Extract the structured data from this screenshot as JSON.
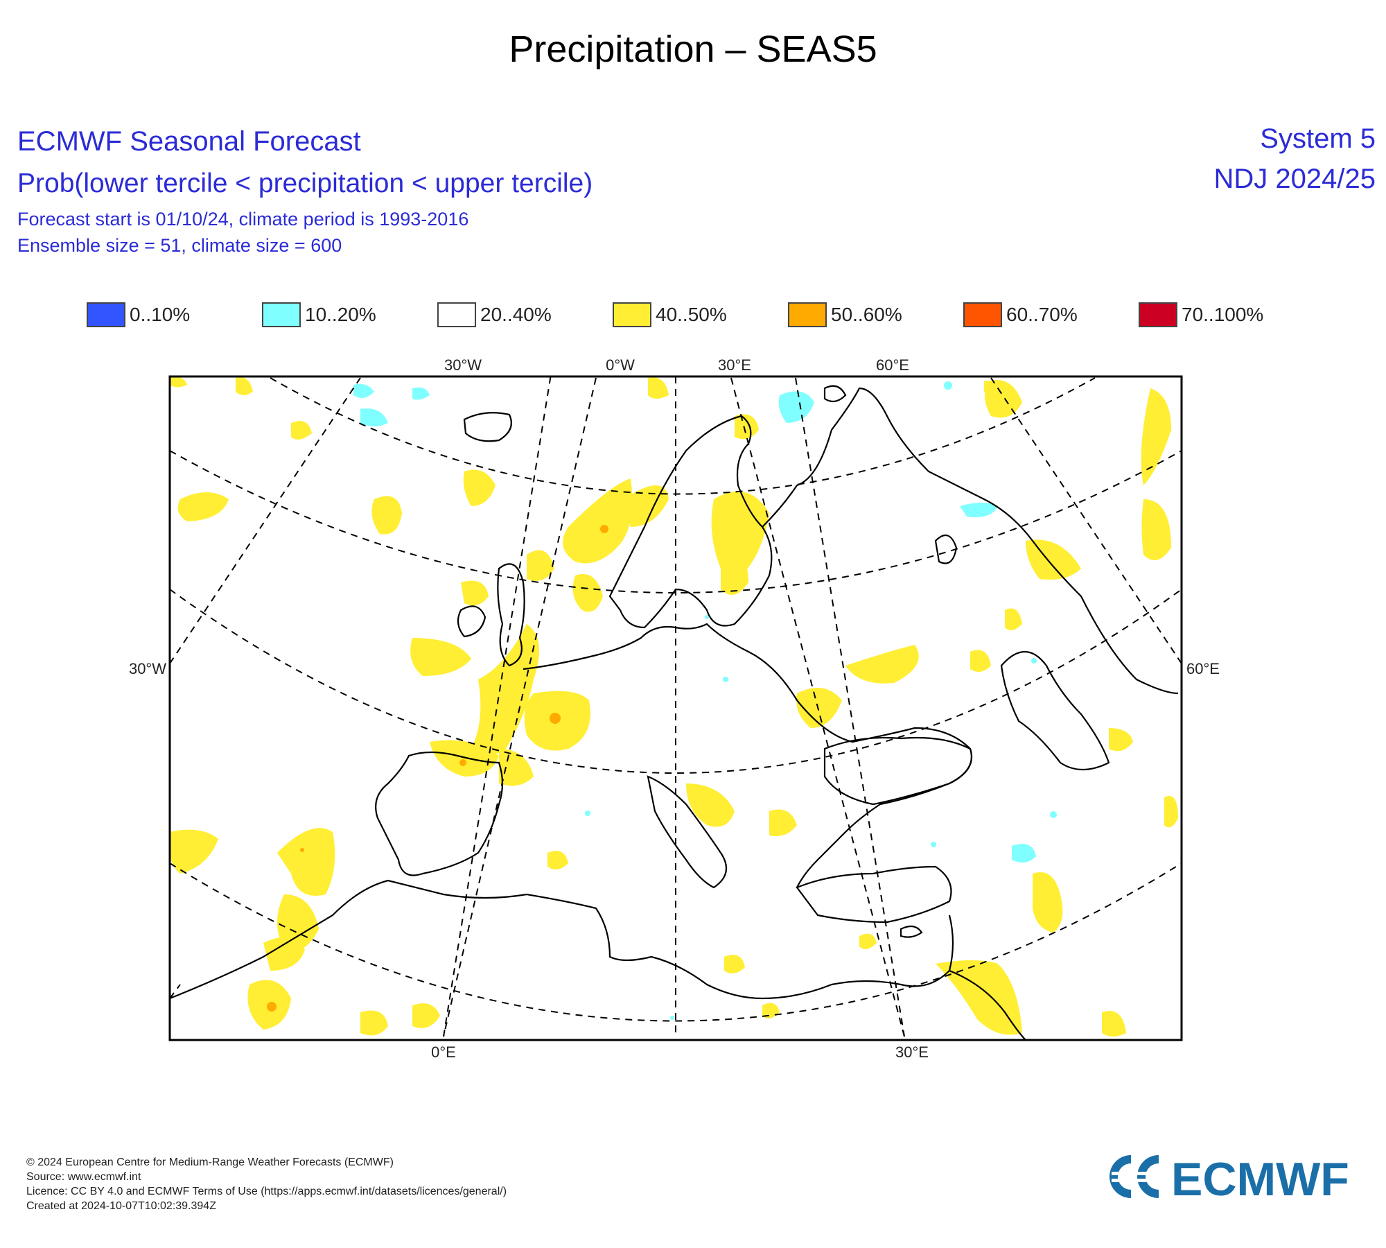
{
  "title": "Precipitation – SEAS5",
  "header": {
    "title": "ECMWF Seasonal Forecast",
    "subtitle": "Prob(lower tercile < precipitation < upper tercile)",
    "info_line1": "Forecast start is 01/10/24, climate period is 1993-2016",
    "info_line2": "Ensemble size = 51, climate size = 600",
    "system": "System 5",
    "period": "NDJ 2024/25"
  },
  "legend": [
    {
      "label": "0..10%",
      "color": "#3355ff"
    },
    {
      "label": "10..20%",
      "color": "#7fffff"
    },
    {
      "label": "20..40%",
      "color": "#ffffff"
    },
    {
      "label": "40..50%",
      "color": "#ffee33"
    },
    {
      "label": "50..60%",
      "color": "#ffaa00"
    },
    {
      "label": "60..70%",
      "color": "#ff5500"
    },
    {
      "label": "70..100%",
      "color": "#cc0022"
    }
  ],
  "map": {
    "labels": {
      "top": [
        "30°W",
        "0°W",
        "30°E",
        "60°E"
      ],
      "left": "30°W",
      "right": "60°E",
      "bottom": [
        "0°E",
        "30°E"
      ]
    },
    "colors": {
      "land_outline": "#000000",
      "graticule": "#000000"
    }
  },
  "footer": {
    "line1": "© 2024 European Centre for Medium-Range Weather Forecasts (ECMWF)",
    "line2": "Source: www.ecmwf.int",
    "line3": "Licence: CC BY 4.0 and ECMWF Terms of Use (https://apps.ecmwf.int/datasets/licences/general/)",
    "line4": "Created at 2024-10-07T10:02:39.394Z"
  },
  "logo": {
    "text": "ECMWF",
    "color": "#1a6fa8"
  }
}
